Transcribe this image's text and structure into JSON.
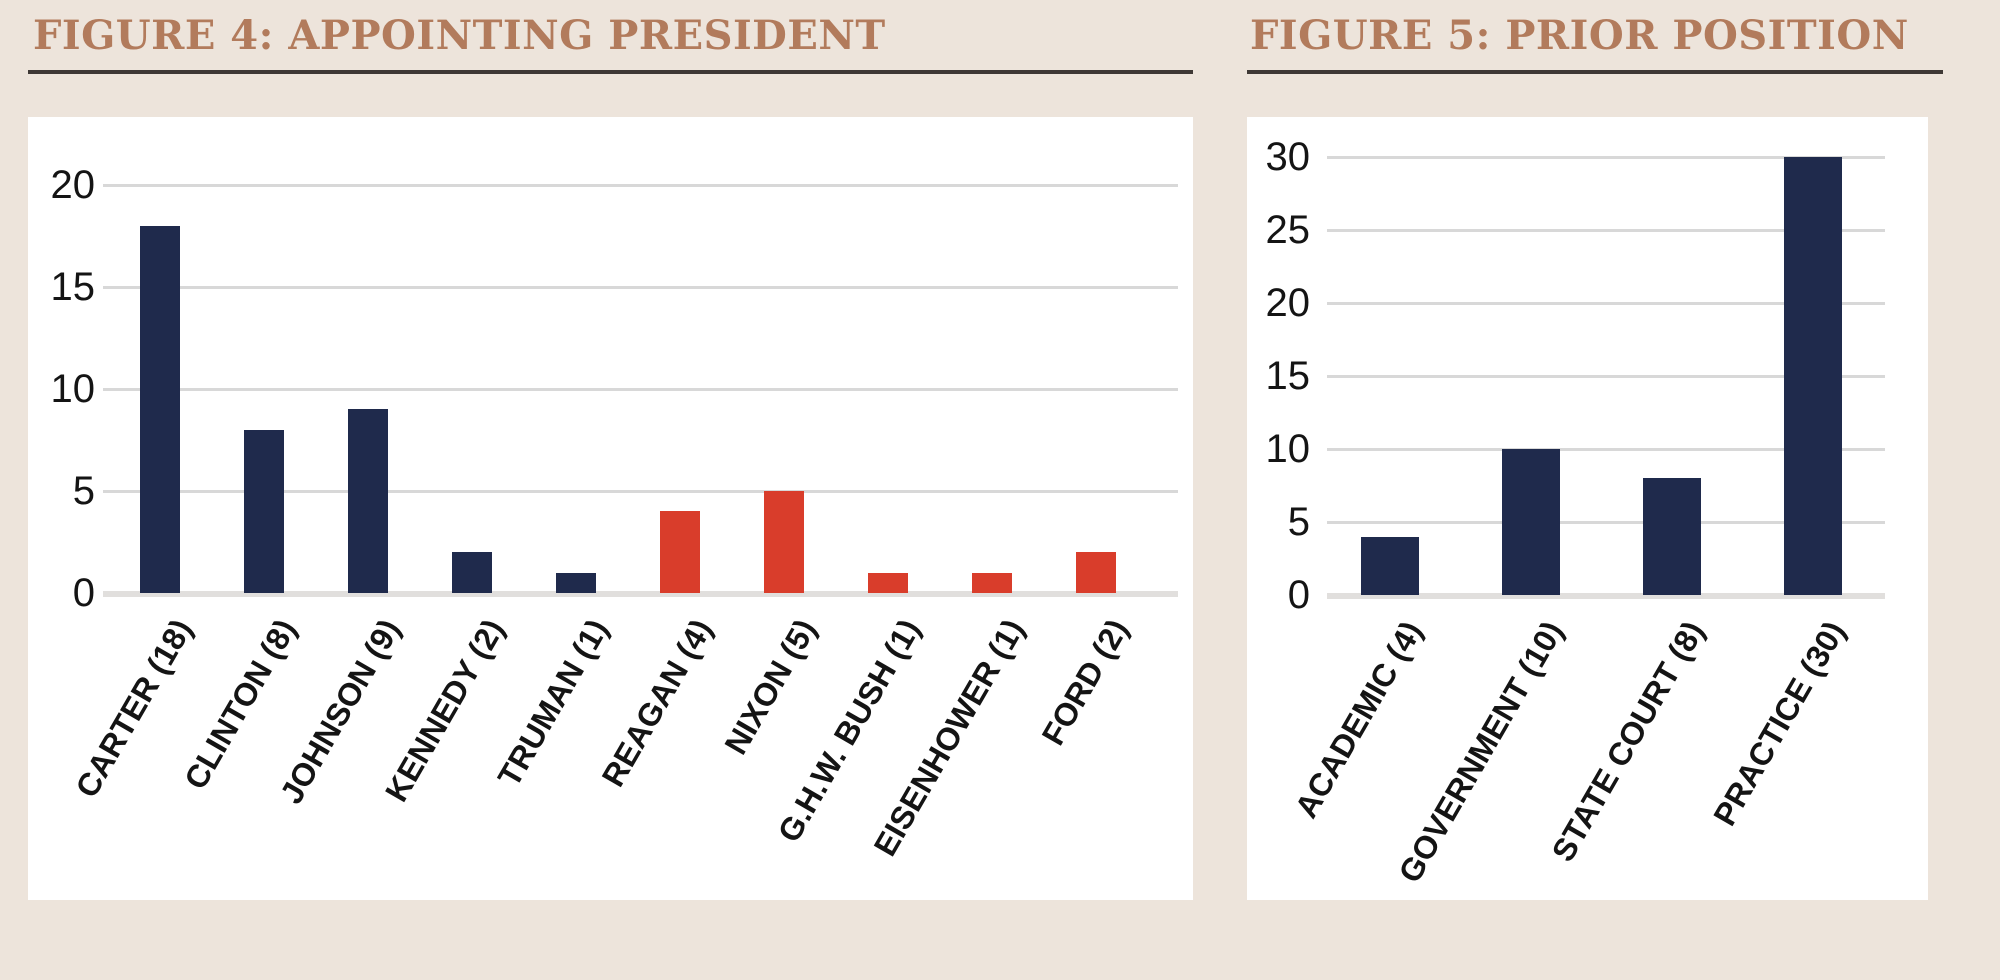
{
  "styles": {
    "page_background": "#EDE4DB",
    "panel_background": "#FFFFFF",
    "title_color": "#B27B5C",
    "title_rule_color": "#3E3835",
    "gridline_color": "#D8D8D8",
    "baseline_color": "#E1DFDD",
    "text_color": "#141414",
    "navy_bar_color": "#1F2A4C",
    "red_bar_color": "#D93D2B"
  },
  "chart_data": [
    {
      "type": "bar",
      "title": "FIGURE 4: APPOINTING PRESIDENT",
      "categories": [
        "CARTER (18)",
        "CLINTON (8)",
        "JOHNSON (9)",
        "KENNEDY (2)",
        "TRUMAN (1)",
        "REAGAN (4)",
        "NIXON (5)",
        "G.H.W. BUSH (1)",
        "EISENHOWER (1)",
        "FORD (2)"
      ],
      "values": [
        18,
        8,
        9,
        2,
        1,
        4,
        5,
        1,
        1,
        2
      ],
      "bar_colors": [
        "#1F2A4C",
        "#1F2A4C",
        "#1F2A4C",
        "#1F2A4C",
        "#1F2A4C",
        "#D93D2B",
        "#D93D2B",
        "#D93D2B",
        "#D93D2B",
        "#D93D2B"
      ],
      "yticks": [
        0,
        5,
        10,
        15,
        20
      ],
      "ylim": [
        0,
        23
      ],
      "xlabel": "",
      "ylabel": "",
      "grid": true,
      "legend": "none",
      "x_label_rotation_deg": 60
    },
    {
      "type": "bar",
      "title": "FIGURE 5: PRIOR POSITION",
      "categories": [
        "ACADEMIC (4)",
        "GOVERNMENT (10)",
        "STATE COURT (8)",
        "PRACTICE (30)"
      ],
      "values": [
        4,
        10,
        8,
        30
      ],
      "bar_colors": [
        "#1F2A4C",
        "#1F2A4C",
        "#1F2A4C",
        "#1F2A4C"
      ],
      "yticks": [
        0,
        5,
        10,
        15,
        20,
        25,
        30
      ],
      "ylim": [
        0,
        33
      ],
      "xlabel": "",
      "ylabel": "",
      "grid": true,
      "legend": "none",
      "x_label_rotation_deg": 60
    }
  ]
}
